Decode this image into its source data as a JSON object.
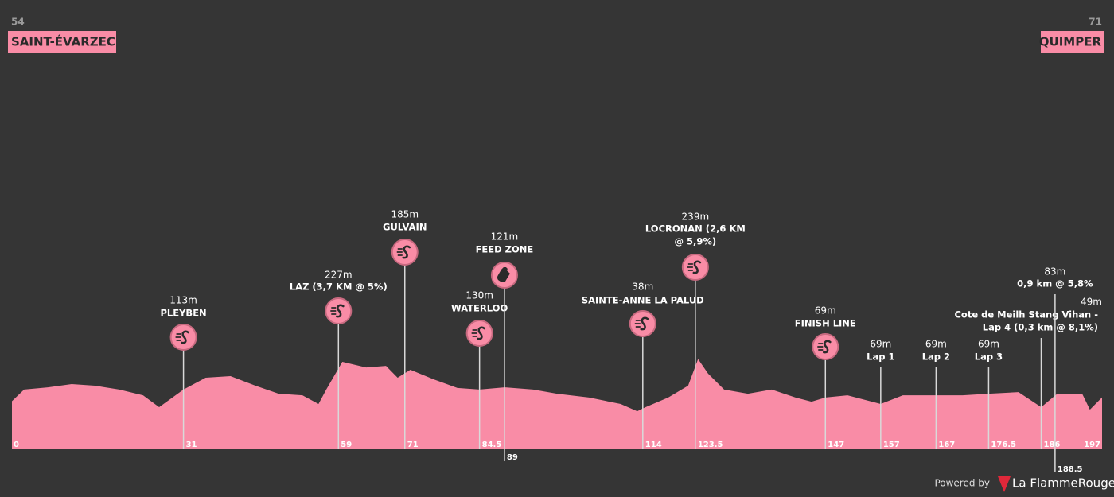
{
  "chart_data": {
    "type": "area",
    "start": {
      "elevation": "54",
      "name": "SAINT-ÉVARZEC"
    },
    "finish": {
      "elevation": "71",
      "name": "QUIMPER"
    },
    "color": "#f98ca6",
    "start_km": 0,
    "end_km": 197,
    "x": [
      0,
      2.2,
      6.5,
      10.8,
      15,
      19.4,
      23.7,
      26.6,
      31,
      35,
      39.5,
      44,
      48.2,
      52.5,
      55.4,
      56.8,
      59.7,
      64,
      67.6,
      69.7,
      72,
      76.2,
      80.5,
      84.5,
      89,
      94.2,
      98.5,
      104.3,
      110,
      113,
      114.5,
      118.6,
      122.2,
      124,
      125.8,
      128.7,
      133,
      137.3,
      141.6,
      144.5,
      147,
      151,
      157,
      161,
      167,
      171.8,
      176.5,
      181.9,
      186,
      188.9,
      193.4,
      194.8,
      197
    ],
    "values": [
      54,
      105,
      115,
      129,
      122,
      105,
      80,
      28,
      105,
      157,
      164,
      122,
      87,
      80,
      42,
      105,
      227,
      202,
      209,
      157,
      192,
      150,
      112,
      105,
      115,
      105,
      87,
      70,
      42,
      10,
      28,
      70,
      122,
      239,
      175,
      105,
      87,
      105,
      70,
      52,
      70,
      80,
      42,
      80,
      80,
      80,
      87,
      94,
      28,
      87,
      87,
      17,
      71
    ],
    "waypoints": [
      {
        "km": 31,
        "elevation": "113m",
        "name": [
          "PLEYBEN"
        ],
        "icon": "sprint"
      },
      {
        "km": 59,
        "elevation": "227m",
        "name": [
          "LAZ (3,7 KM @ 5%)"
        ],
        "icon": "sprint"
      },
      {
        "km": 71,
        "elevation": "185m",
        "name": [
          "GULVAIN"
        ],
        "icon": "sprint"
      },
      {
        "km": 84.5,
        "elevation": "130m",
        "name": [
          "WATERLOO"
        ],
        "icon": "sprint"
      },
      {
        "km": 89,
        "elevation": "121m",
        "name": [
          "FEED ZONE"
        ],
        "icon": "feed"
      },
      {
        "km": 114,
        "elevation": "38m",
        "name": [
          "SAINTE-ANNE LA PALUD"
        ],
        "icon": "sprint"
      },
      {
        "km": 123.5,
        "elevation": "239m",
        "name": [
          "LOCRONAN (2,6 KM",
          "@ 5,9%)"
        ],
        "icon": "sprint"
      },
      {
        "km": 147,
        "elevation": "69m",
        "name": [
          "FINISH LINE"
        ],
        "icon": "sprint"
      },
      {
        "km": 157,
        "elevation": "69m",
        "name": [
          "Lap 1"
        ]
      },
      {
        "km": 167,
        "elevation": "69m",
        "name": [
          "Lap 2"
        ]
      },
      {
        "km": 176.5,
        "elevation": "69m",
        "name": [
          "Lap 3"
        ]
      },
      {
        "km": 186,
        "elevation": "49m",
        "name": [
          "Cote de Meilh Stang Vihan -",
          "Lap 4 (0,3 km @ 8,1%)"
        ]
      },
      {
        "km": 188.5,
        "elevation": "83m",
        "name": [
          "0,9 km @ 5,8%"
        ]
      }
    ],
    "footer": {
      "powered": "Powered by",
      "brand": "La FlammeRouge"
    }
  }
}
